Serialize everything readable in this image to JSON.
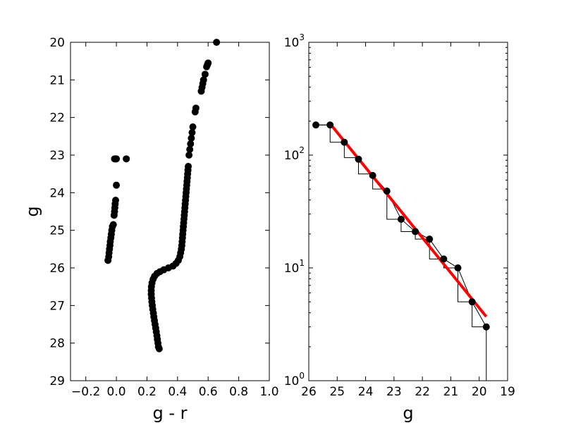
{
  "chart_data": [
    {
      "type": "scatter",
      "title": "",
      "xlabel": "g - r",
      "ylabel": "g",
      "xlim": [
        -0.3,
        1.0
      ],
      "ylim": [
        29,
        20
      ],
      "y_inverted": true,
      "grid": false,
      "xticks": [
        -0.2,
        0.0,
        0.2,
        0.4,
        0.6,
        0.8,
        1.0
      ],
      "xtick_labels": [
        "−0.2",
        "0.0",
        "0.2",
        "0.4",
        "0.6",
        "0.8",
        "1.0"
      ],
      "yticks": [
        20,
        21,
        22,
        23,
        24,
        25,
        26,
        27,
        28,
        29
      ],
      "ytick_labels": [
        "20",
        "21",
        "22",
        "23",
        "24",
        "25",
        "26",
        "27",
        "28",
        "29"
      ],
      "marker_color": "#000000",
      "series": [
        {
          "points": [
            [
              -0.055,
              25.8
            ],
            [
              -0.05,
              25.7
            ],
            [
              -0.048,
              25.6
            ],
            [
              -0.045,
              25.5
            ],
            [
              -0.042,
              25.4
            ],
            [
              -0.04,
              25.3
            ],
            [
              -0.036,
              25.2
            ],
            [
              -0.033,
              25.1
            ],
            [
              -0.03,
              25.0
            ],
            [
              -0.026,
              24.9
            ],
            [
              -0.02,
              24.85
            ],
            [
              -0.015,
              24.6
            ],
            [
              -0.012,
              24.5
            ],
            [
              -0.01,
              24.4
            ],
            [
              -0.008,
              24.3
            ],
            [
              -0.005,
              24.2
            ],
            [
              0.0,
              23.8
            ],
            [
              -0.012,
              23.1
            ],
            [
              -0.005,
              23.1
            ],
            [
              0.0,
              23.1
            ],
            [
              0.065,
              23.1
            ],
            [
              0.28,
              28.15
            ],
            [
              0.275,
              28.1
            ],
            [
              0.272,
              28.0
            ],
            [
              0.268,
              27.9
            ],
            [
              0.265,
              27.8
            ],
            [
              0.261,
              27.7
            ],
            [
              0.257,
              27.6
            ],
            [
              0.253,
              27.5
            ],
            [
              0.249,
              27.4
            ],
            [
              0.245,
              27.3
            ],
            [
              0.242,
              27.2
            ],
            [
              0.238,
              27.1
            ],
            [
              0.235,
              27.0
            ],
            [
              0.232,
              26.9
            ],
            [
              0.23,
              26.8
            ],
            [
              0.228,
              26.7
            ],
            [
              0.228,
              26.6
            ],
            [
              0.229,
              26.5
            ],
            [
              0.233,
              26.4
            ],
            [
              0.24,
              26.3
            ],
            [
              0.25,
              26.22
            ],
            [
              0.265,
              26.15
            ],
            [
              0.285,
              26.1
            ],
            [
              0.31,
              26.05
            ],
            [
              0.34,
              26.0
            ],
            [
              0.37,
              25.95
            ],
            [
              0.39,
              25.88
            ],
            [
              0.405,
              25.8
            ],
            [
              0.415,
              25.7
            ],
            [
              0.42,
              25.6
            ],
            [
              0.425,
              25.5
            ],
            [
              0.428,
              25.4
            ],
            [
              0.43,
              25.3
            ],
            [
              0.432,
              25.2
            ],
            [
              0.434,
              25.1
            ],
            [
              0.436,
              25.0
            ],
            [
              0.438,
              24.9
            ],
            [
              0.44,
              24.8
            ],
            [
              0.442,
              24.7
            ],
            [
              0.444,
              24.6
            ],
            [
              0.446,
              24.5
            ],
            [
              0.448,
              24.4
            ],
            [
              0.45,
              24.3
            ],
            [
              0.452,
              24.2
            ],
            [
              0.454,
              24.1
            ],
            [
              0.456,
              24.0
            ],
            [
              0.458,
              23.9
            ],
            [
              0.46,
              23.8
            ],
            [
              0.462,
              23.7
            ],
            [
              0.464,
              23.6
            ],
            [
              0.466,
              23.5
            ],
            [
              0.468,
              23.4
            ],
            [
              0.47,
              23.3
            ],
            [
              0.475,
              23.0
            ],
            [
              0.48,
              22.85
            ],
            [
              0.485,
              22.7
            ],
            [
              0.49,
              22.55
            ],
            [
              0.495,
              22.4
            ],
            [
              0.5,
              22.25
            ],
            [
              0.515,
              21.85
            ],
            [
              0.52,
              21.75
            ],
            [
              0.555,
              21.3
            ],
            [
              0.56,
              21.2
            ],
            [
              0.565,
              21.1
            ],
            [
              0.57,
              21.0
            ],
            [
              0.58,
              20.85
            ],
            [
              0.59,
              20.65
            ],
            [
              0.595,
              20.6
            ],
            [
              0.6,
              20.55
            ],
            [
              0.655,
              20.0
            ]
          ]
        }
      ]
    },
    {
      "type": "line",
      "title": "",
      "xlabel": "g",
      "ylabel": "",
      "xlim": [
        26,
        19
      ],
      "x_inverted": true,
      "ylim": [
        1,
        1000
      ],
      "yscale": "log",
      "grid": false,
      "xticks": [
        26,
        25,
        24,
        23,
        22,
        21,
        20,
        19
      ],
      "xtick_labels": [
        "26",
        "25",
        "24",
        "23",
        "22",
        "21",
        "20",
        "19"
      ],
      "yticks": [
        1,
        10,
        100,
        1000
      ],
      "ytick_labels": [
        {
          "base": "10",
          "exp": "0"
        },
        {
          "base": "10",
          "exp": "1"
        },
        {
          "base": "10",
          "exp": "2"
        },
        {
          "base": "10",
          "exp": "3"
        }
      ],
      "histogram": {
        "color": "#000000",
        "bin_edges": [
          25.75,
          25.25,
          24.75,
          24.25,
          23.75,
          23.25,
          22.75,
          22.25,
          21.75,
          21.25,
          20.75,
          20.25,
          19.75
        ],
        "counts": [
          185,
          130,
          95,
          68,
          50,
          27,
          21,
          18,
          12,
          10,
          5,
          3
        ]
      },
      "series": [
        {
          "color": "#000000",
          "marker": "circle",
          "x": [
            25.75,
            25.25,
            24.75,
            24.25,
            23.75,
            23.25,
            22.75,
            22.25,
            21.75,
            21.25,
            20.75,
            20.25,
            19.75
          ],
          "y": [
            185,
            185,
            130,
            92,
            66,
            48,
            27,
            21,
            18,
            12,
            10,
            5,
            3
          ]
        }
      ],
      "fit_line": {
        "color": "#ff0000",
        "x": [
          25.25,
          19.75
        ],
        "y": [
          190,
          3.7
        ]
      }
    }
  ]
}
